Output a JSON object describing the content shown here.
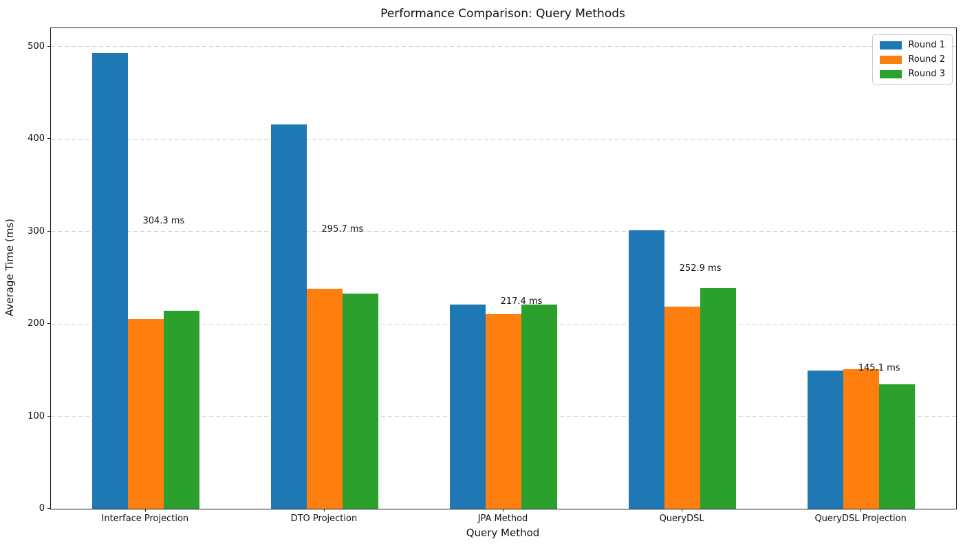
{
  "chart_data": {
    "type": "bar",
    "title": "Performance Comparison: Query Methods",
    "xlabel": "Query Method",
    "ylabel": "Average Time (ms)",
    "categories": [
      "Interface Projection",
      "DTO Projection",
      "JPA Method",
      "QueryDSL",
      "QueryDSL Projection"
    ],
    "series": [
      {
        "name": "Round 1",
        "color": "#1f77b4",
        "values": [
          493.2,
          415.8,
          220.9,
          301.1,
          149.5
        ]
      },
      {
        "name": "Round 2",
        "color": "#ff7f0e",
        "values": [
          205.3,
          238.2,
          210.4,
          218.9,
          150.8
        ]
      },
      {
        "name": "Round 3",
        "color": "#2ca02c",
        "values": [
          214.4,
          233.1,
          220.9,
          238.7,
          135.0
        ]
      }
    ],
    "annotations": [
      {
        "text": "304.3 ms",
        "value": 304.3
      },
      {
        "text": "295.7 ms",
        "value": 295.7
      },
      {
        "text": "217.4 ms",
        "value": 217.4
      },
      {
        "text": "252.9 ms",
        "value": 252.9
      },
      {
        "text": "145.1 ms",
        "value": 145.1
      }
    ],
    "yticks": [
      0,
      100,
      200,
      300,
      400,
      500
    ],
    "ylim": [
      0,
      520
    ],
    "grid": "horizontal-dashed",
    "legend_position": "upper-right"
  }
}
